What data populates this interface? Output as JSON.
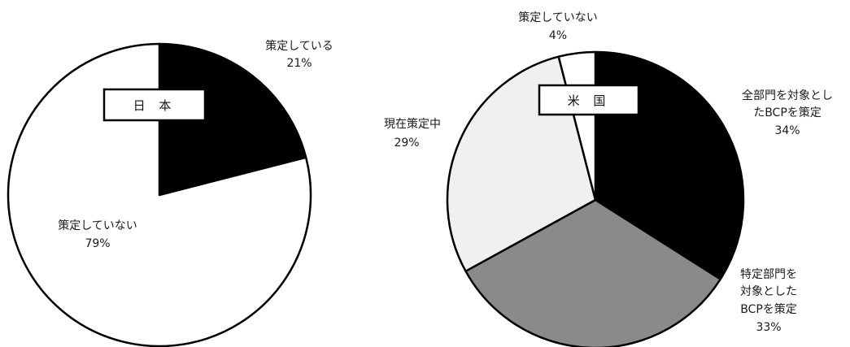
{
  "chart_data": [
    {
      "type": "pie",
      "title": "日 本",
      "categories": [
        "策定している",
        "策定していない"
      ],
      "values": [
        21,
        79
      ],
      "value_labels": [
        "21%",
        "79%"
      ],
      "colors": [
        "#000000",
        "#ffffff"
      ]
    },
    {
      "type": "pie",
      "title": "米 国",
      "categories": [
        "全部門を対象としたBCPを策定",
        "特定部門を対象としたBCPを策定",
        "現在策定中",
        "策定していない"
      ],
      "label_lines": [
        [
          "全部門を対象とし",
          "たBCPを策定"
        ],
        [
          "特定部門を",
          "対象とした",
          "BCPを策定"
        ],
        [
          "現在策定中"
        ],
        [
          "策定していない"
        ]
      ],
      "values": [
        34,
        33,
        29,
        4
      ],
      "value_labels": [
        "34%",
        "33%",
        "29%",
        "4%"
      ],
      "colors": [
        "#000000",
        "#8a8a8a",
        "#f0f0f0",
        "#ffffff"
      ]
    }
  ]
}
